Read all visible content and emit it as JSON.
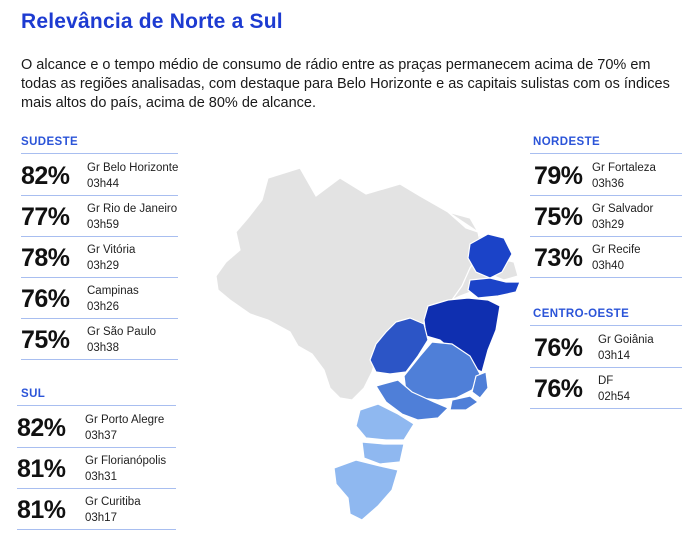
{
  "title": "Relevância de Norte a Sul",
  "intro": "O alcance e o tempo médio de consumo de rádio entre as praças permanecem acima de 70% em todas as regiões analisadas, com destaque para Belo Horizonte e as capitais sulistas com os índices mais altos do país, acima de 80% de alcance.",
  "colors": {
    "title": "#1d3bd1",
    "region_title": "#2b54d8",
    "divider": "#a8bef0",
    "map_base": "#e3e3e3",
    "nordeste_dark": "#0f2fb0",
    "nordeste_mid": "#1b43c8",
    "centro_oeste": "#2c55c6",
    "sudeste": "#4f7fd8",
    "sul": "#8fb8f0"
  },
  "regions": {
    "sudeste": {
      "label": "SUDESTE",
      "items": [
        {
          "pct": "82%",
          "city": "Gr Belo Horizonte",
          "time": "03h44"
        },
        {
          "pct": "77%",
          "city": "Gr Rio de Janeiro",
          "time": "03h59"
        },
        {
          "pct": "78%",
          "city": "Gr Vitória",
          "time": "03h29"
        },
        {
          "pct": "76%",
          "city": "Campinas",
          "time": "03h26"
        },
        {
          "pct": "75%",
          "city": "Gr São Paulo",
          "time": "03h38"
        }
      ]
    },
    "sul": {
      "label": "SUL",
      "items": [
        {
          "pct": "82%",
          "city": "Gr Porto Alegre",
          "time": "03h37"
        },
        {
          "pct": "81%",
          "city": "Gr Florianópolis",
          "time": "03h31"
        },
        {
          "pct": "81%",
          "city": "Gr Curitiba",
          "time": "03h17"
        }
      ]
    },
    "nordeste": {
      "label": "NORDESTE",
      "items": [
        {
          "pct": "79%",
          "city": "Gr Fortaleza",
          "time": "03h36"
        },
        {
          "pct": "75%",
          "city": "Gr Salvador",
          "time": "03h29"
        },
        {
          "pct": "73%",
          "city": "Gr Recife",
          "time": "03h40"
        }
      ]
    },
    "centro_oeste": {
      "label": "CENTRO-OESTE",
      "items": [
        {
          "pct": "76%",
          "city": "Gr Goiânia",
          "time": "03h14"
        },
        {
          "pct": "76%",
          "city": "DF",
          "time": "02h54"
        }
      ]
    }
  }
}
